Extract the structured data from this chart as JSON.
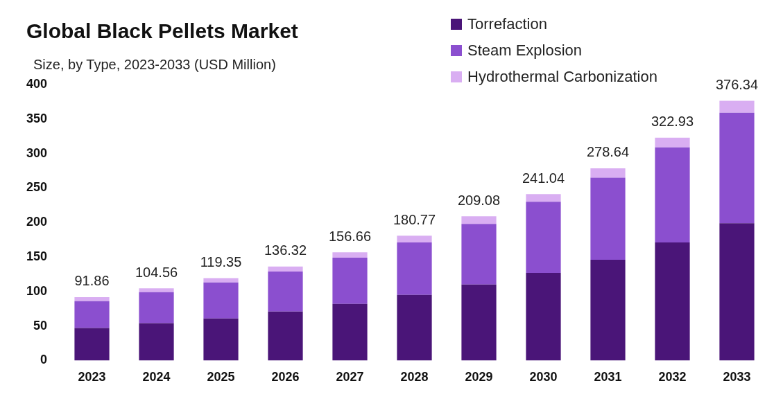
{
  "chart_data": {
    "type": "bar",
    "title": "Global Black Pellets Market",
    "subtitle": "Size, by Type, 2023-2033 (USD Million)",
    "categories": [
      "2023",
      "2024",
      "2025",
      "2026",
      "2027",
      "2028",
      "2029",
      "2030",
      "2031",
      "2032",
      "2033"
    ],
    "series": [
      {
        "name": "Torrefaction",
        "color": "#4a1578",
        "values": [
          47,
          54,
          61,
          71,
          82,
          95,
          110,
          127,
          146,
          171,
          199
        ]
      },
      {
        "name": "Steam Explosion",
        "color": "#8b4fcf",
        "values": [
          39,
          45,
          52,
          58,
          67,
          76,
          88,
          103,
          119,
          138,
          160
        ]
      },
      {
        "name": "Hydrothermal Carbonization",
        "color": "#d9aef2",
        "values": [
          5.86,
          5.56,
          6.35,
          7.32,
          7.66,
          9.77,
          11.08,
          11.04,
          13.64,
          13.93,
          17.34
        ]
      }
    ],
    "stacked": true,
    "totals": [
      "91.86",
      "104.56",
      "119.35",
      "136.32",
      "156.66",
      "180.77",
      "209.08",
      "241.04",
      "278.64",
      "322.93",
      "376.34"
    ],
    "ylim": [
      0,
      400
    ],
    "yticks": [
      0,
      50,
      100,
      150,
      200,
      250,
      300,
      350,
      400
    ],
    "grid": false,
    "legend": "top right"
  }
}
